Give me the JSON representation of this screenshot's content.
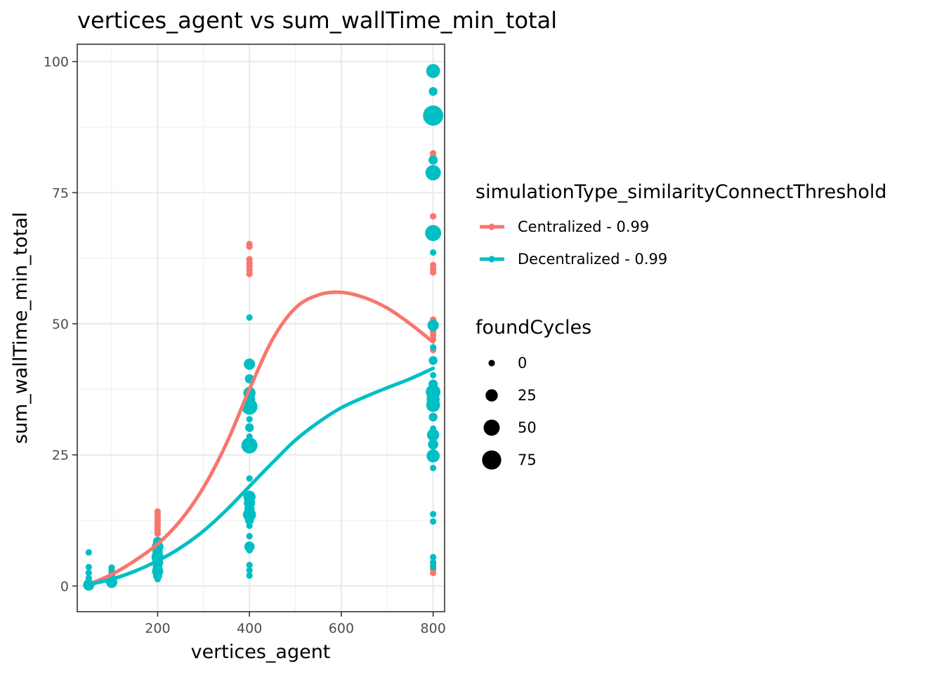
{
  "chart_data": {
    "type": "scatter",
    "title": "vertices_agent  vs  sum_wallTime_min_total",
    "xlabel": "vertices_agent",
    "ylabel": "sum_wallTime_min_total",
    "xlim": [
      25,
      825
    ],
    "ylim": [
      -4.9,
      103.3
    ],
    "x_ticks": [
      200,
      400,
      600,
      800
    ],
    "y_ticks": [
      0,
      25,
      50,
      75,
      100
    ],
    "grid": true,
    "legend_position": "right",
    "color_legend": {
      "title": "simulationType_similarityConnectThreshold",
      "entries": [
        {
          "label": "Centralized - 0.99",
          "color": "#F8766D"
        },
        {
          "label": "Decentralized - 0.99",
          "color": "#00BFC4"
        }
      ]
    },
    "size_legend": {
      "title": "foundCycles",
      "entries": [
        {
          "label": "0",
          "value": 0
        },
        {
          "label": "25",
          "value": 25
        },
        {
          "label": "50",
          "value": 50
        },
        {
          "label": "75",
          "value": 75
        }
      ]
    },
    "series": [
      {
        "name": "Centralized - 0.99",
        "color": "#F8766D",
        "points": [
          {
            "x": 50,
            "y": 0.3,
            "size": 0
          },
          {
            "x": 50,
            "y": 0.5,
            "size": 0
          },
          {
            "x": 50,
            "y": 0.8,
            "size": 0
          },
          {
            "x": 100,
            "y": 1.2,
            "size": 0
          },
          {
            "x": 100,
            "y": 1.6,
            "size": 0
          },
          {
            "x": 100,
            "y": 2.0,
            "size": 0
          },
          {
            "x": 100,
            "y": 2.5,
            "size": 0
          },
          {
            "x": 100,
            "y": 3.0,
            "size": 0
          },
          {
            "x": 200,
            "y": 10.0,
            "size": 0
          },
          {
            "x": 200,
            "y": 10.6,
            "size": 0
          },
          {
            "x": 200,
            "y": 11.2,
            "size": 0
          },
          {
            "x": 200,
            "y": 11.8,
            "size": 0
          },
          {
            "x": 200,
            "y": 12.4,
            "size": 0
          },
          {
            "x": 200,
            "y": 13.0,
            "size": 0
          },
          {
            "x": 200,
            "y": 13.6,
            "size": 0
          },
          {
            "x": 200,
            "y": 14.2,
            "size": 0
          },
          {
            "x": 400,
            "y": 16.2,
            "size": 0
          },
          {
            "x": 400,
            "y": 16.8,
            "size": 0
          },
          {
            "x": 400,
            "y": 13.0,
            "size": 0
          },
          {
            "x": 400,
            "y": 59.5,
            "size": 0
          },
          {
            "x": 400,
            "y": 60.2,
            "size": 0
          },
          {
            "x": 400,
            "y": 60.9,
            "size": 0
          },
          {
            "x": 400,
            "y": 61.6,
            "size": 0
          },
          {
            "x": 400,
            "y": 62.3,
            "size": 0
          },
          {
            "x": 400,
            "y": 64.7,
            "size": 0
          },
          {
            "x": 400,
            "y": 65.2,
            "size": 0
          },
          {
            "x": 800,
            "y": 2.5,
            "size": 0
          },
          {
            "x": 800,
            "y": 3.2,
            "size": 0
          },
          {
            "x": 800,
            "y": 4.0,
            "size": 0
          },
          {
            "x": 800,
            "y": 45.0,
            "size": 0
          },
          {
            "x": 800,
            "y": 47.0,
            "size": 0
          },
          {
            "x": 800,
            "y": 47.8,
            "size": 0
          },
          {
            "x": 800,
            "y": 48.5,
            "size": 0
          },
          {
            "x": 800,
            "y": 49.2,
            "size": 0
          },
          {
            "x": 800,
            "y": 50.0,
            "size": 0
          },
          {
            "x": 800,
            "y": 50.8,
            "size": 0
          },
          {
            "x": 800,
            "y": 59.8,
            "size": 0
          },
          {
            "x": 800,
            "y": 60.5,
            "size": 0
          },
          {
            "x": 800,
            "y": 61.2,
            "size": 0
          },
          {
            "x": 800,
            "y": 70.5,
            "size": 0
          },
          {
            "x": 800,
            "y": 81.8,
            "size": 0
          },
          {
            "x": 800,
            "y": 82.5,
            "size": 0
          }
        ],
        "smooth": [
          {
            "x": 50,
            "y": 0.3
          },
          {
            "x": 100,
            "y": 2.2
          },
          {
            "x": 150,
            "y": 4.8
          },
          {
            "x": 200,
            "y": 8.0
          },
          {
            "x": 250,
            "y": 12.5
          },
          {
            "x": 300,
            "y": 18.8
          },
          {
            "x": 350,
            "y": 27.2
          },
          {
            "x": 400,
            "y": 37.5
          },
          {
            "x": 450,
            "y": 47.0
          },
          {
            "x": 500,
            "y": 53.0
          },
          {
            "x": 550,
            "y": 55.5
          },
          {
            "x": 600,
            "y": 56.0
          },
          {
            "x": 650,
            "y": 55.0
          },
          {
            "x": 700,
            "y": 53.0
          },
          {
            "x": 750,
            "y": 50.0
          },
          {
            "x": 800,
            "y": 46.5
          }
        ]
      },
      {
        "name": "Decentralized - 0.99",
        "color": "#00BFC4",
        "points": [
          {
            "x": 50,
            "y": 0.2,
            "size": 20
          },
          {
            "x": 50,
            "y": 0.6,
            "size": 8
          },
          {
            "x": 50,
            "y": 1.5,
            "size": 0
          },
          {
            "x": 50,
            "y": 2.5,
            "size": 0
          },
          {
            "x": 50,
            "y": 3.6,
            "size": 0
          },
          {
            "x": 50,
            "y": 6.4,
            "size": 0
          },
          {
            "x": 100,
            "y": 0.7,
            "size": 20
          },
          {
            "x": 100,
            "y": 1.2,
            "size": 10
          },
          {
            "x": 100,
            "y": 2.0,
            "size": 3
          },
          {
            "x": 100,
            "y": 2.8,
            "size": 0
          },
          {
            "x": 100,
            "y": 3.5,
            "size": 0
          },
          {
            "x": 200,
            "y": 1.3,
            "size": 0
          },
          {
            "x": 200,
            "y": 2.0,
            "size": 10
          },
          {
            "x": 200,
            "y": 2.8,
            "size": 20
          },
          {
            "x": 200,
            "y": 3.6,
            "size": 12
          },
          {
            "x": 200,
            "y": 4.5,
            "size": 20
          },
          {
            "x": 200,
            "y": 5.5,
            "size": 25
          },
          {
            "x": 200,
            "y": 6.5,
            "size": 15
          },
          {
            "x": 200,
            "y": 7.5,
            "size": 22
          },
          {
            "x": 200,
            "y": 8.5,
            "size": 10
          },
          {
            "x": 400,
            "y": 2.0,
            "size": 0
          },
          {
            "x": 400,
            "y": 3.0,
            "size": 0
          },
          {
            "x": 400,
            "y": 4.0,
            "size": 0
          },
          {
            "x": 400,
            "y": 6.8,
            "size": 0
          },
          {
            "x": 400,
            "y": 7.5,
            "size": 15
          },
          {
            "x": 400,
            "y": 9.5,
            "size": 0
          },
          {
            "x": 400,
            "y": 11.5,
            "size": 0
          },
          {
            "x": 400,
            "y": 12.5,
            "size": 8
          },
          {
            "x": 400,
            "y": 13.6,
            "size": 30
          },
          {
            "x": 400,
            "y": 14.6,
            "size": 15
          },
          {
            "x": 400,
            "y": 15.8,
            "size": 20
          },
          {
            "x": 400,
            "y": 17.0,
            "size": 25
          },
          {
            "x": 400,
            "y": 20.5,
            "size": 0
          },
          {
            "x": 400,
            "y": 26.8,
            "size": 50
          },
          {
            "x": 400,
            "y": 28.5,
            "size": 0
          },
          {
            "x": 400,
            "y": 30.2,
            "size": 8
          },
          {
            "x": 400,
            "y": 31.8,
            "size": 0
          },
          {
            "x": 400,
            "y": 34.2,
            "size": 50
          },
          {
            "x": 400,
            "y": 35.6,
            "size": 20
          },
          {
            "x": 400,
            "y": 36.8,
            "size": 25
          },
          {
            "x": 400,
            "y": 39.5,
            "size": 10
          },
          {
            "x": 400,
            "y": 42.3,
            "size": 20
          },
          {
            "x": 400,
            "y": 51.2,
            "size": 0
          },
          {
            "x": 800,
            "y": 3.6,
            "size": 0
          },
          {
            "x": 800,
            "y": 4.5,
            "size": 0
          },
          {
            "x": 800,
            "y": 5.5,
            "size": 0
          },
          {
            "x": 800,
            "y": 12.3,
            "size": 0
          },
          {
            "x": 800,
            "y": 13.7,
            "size": 0
          },
          {
            "x": 800,
            "y": 22.5,
            "size": 0
          },
          {
            "x": 800,
            "y": 24.8,
            "size": 30
          },
          {
            "x": 800,
            "y": 27.0,
            "size": 15
          },
          {
            "x": 800,
            "y": 28.8,
            "size": 25
          },
          {
            "x": 800,
            "y": 30.0,
            "size": 0
          },
          {
            "x": 800,
            "y": 32.2,
            "size": 8
          },
          {
            "x": 800,
            "y": 34.5,
            "size": 35
          },
          {
            "x": 800,
            "y": 35.6,
            "size": 30
          },
          {
            "x": 800,
            "y": 37.0,
            "size": 40
          },
          {
            "x": 800,
            "y": 38.5,
            "size": 10
          },
          {
            "x": 800,
            "y": 40.2,
            "size": 0
          },
          {
            "x": 800,
            "y": 43.0,
            "size": 8
          },
          {
            "x": 800,
            "y": 45.5,
            "size": 0
          },
          {
            "x": 800,
            "y": 49.7,
            "size": 20
          },
          {
            "x": 800,
            "y": 63.6,
            "size": 0
          },
          {
            "x": 800,
            "y": 67.3,
            "size": 50
          },
          {
            "x": 800,
            "y": 78.8,
            "size": 45
          },
          {
            "x": 800,
            "y": 81.2,
            "size": 10
          },
          {
            "x": 800,
            "y": 89.7,
            "size": 85
          },
          {
            "x": 800,
            "y": 94.3,
            "size": 8
          },
          {
            "x": 800,
            "y": 98.2,
            "size": 35
          }
        ],
        "smooth": [
          {
            "x": 50,
            "y": 0.3
          },
          {
            "x": 100,
            "y": 1.3
          },
          {
            "x": 150,
            "y": 2.8
          },
          {
            "x": 200,
            "y": 4.8
          },
          {
            "x": 250,
            "y": 7.3
          },
          {
            "x": 300,
            "y": 10.5
          },
          {
            "x": 350,
            "y": 14.5
          },
          {
            "x": 400,
            "y": 19.0
          },
          {
            "x": 450,
            "y": 23.5
          },
          {
            "x": 500,
            "y": 27.8
          },
          {
            "x": 550,
            "y": 31.2
          },
          {
            "x": 600,
            "y": 34.0
          },
          {
            "x": 650,
            "y": 36.0
          },
          {
            "x": 700,
            "y": 37.8
          },
          {
            "x": 750,
            "y": 39.5
          },
          {
            "x": 800,
            "y": 41.5
          }
        ]
      }
    ]
  }
}
